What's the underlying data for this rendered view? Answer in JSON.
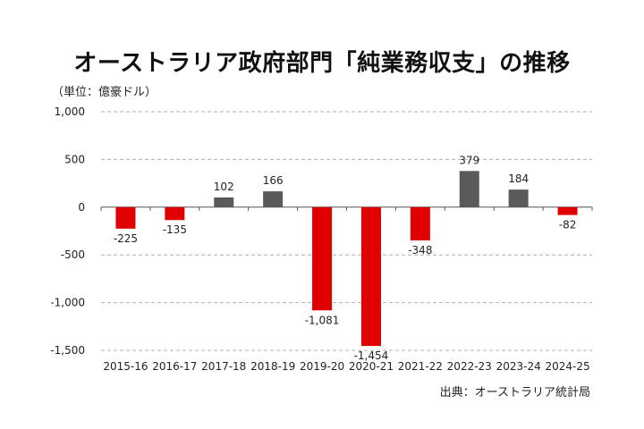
{
  "header": {
    "title": "オーストラリア政府部門「純業務収支」の推移",
    "unit": "（単位：億豪ドル）"
  },
  "footer": {
    "source": "出典：オーストラリア統計局"
  },
  "colors": {
    "negative": "#e00000",
    "positive": "#5a5a5a",
    "grid": "#b0b0b0",
    "axis": "#555555"
  },
  "chart_data": {
    "type": "bar",
    "title": "オーストラリア政府部門「純業務収支」の推移",
    "ylabel": "（単位：億豪ドル）",
    "xlabel": "",
    "categories": [
      "2015-16",
      "2016-17",
      "2017-18",
      "2018-19",
      "2019-20",
      "2020-21",
      "2021-22",
      "2022-23",
      "2023-24",
      "2024-25"
    ],
    "values": [
      -225,
      -135,
      102,
      166,
      -1081,
      -1454,
      -348,
      379,
      184,
      -82
    ],
    "value_labels": [
      "-225",
      "-135",
      "102",
      "166",
      "-1,081",
      "-1,454",
      "-348",
      "379",
      "184",
      "-82"
    ],
    "ylim": [
      -1500,
      1000
    ],
    "yticks": [
      1000,
      500,
      0,
      -500,
      -1000,
      -1500
    ],
    "ytick_labels": [
      "1,000",
      "500",
      "0",
      "-500",
      "-1,000",
      "-1,500"
    ],
    "grid": true,
    "gridlines": "dashed horizontal"
  }
}
